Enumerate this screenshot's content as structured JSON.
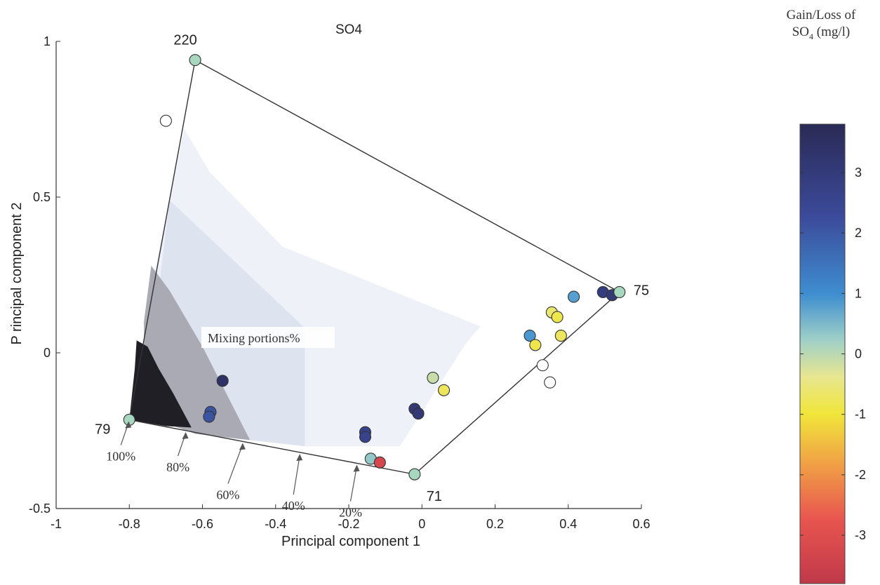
{
  "chart_data": {
    "type": "scatter",
    "title": "SO4",
    "xlabel": "Principal component 1",
    "ylabel": "P rincipal component 2",
    "xlim": [
      -1,
      0.6
    ],
    "ylim": [
      -0.5,
      1
    ],
    "x_ticks": [
      "-1",
      "-0.8",
      "-0.6",
      "-0.4",
      "-0.2",
      "0",
      "0.2",
      "0.4",
      "0.6"
    ],
    "y_ticks": [
      "-0.5",
      "0",
      "0.5",
      "1"
    ],
    "end_members": [
      {
        "label": "220",
        "x": -0.62,
        "y": 0.94
      },
      {
        "label": "75",
        "x": 0.54,
        "y": 0.195
      },
      {
        "label": "71",
        "x": -0.02,
        "y": -0.39
      },
      {
        "label": "79",
        "x": -0.8,
        "y": -0.215
      }
    ],
    "mixing_annotation": "Mixing portions%",
    "mixing_percentages": [
      "100%",
      "80%",
      "60%",
      "40%",
      "20%"
    ],
    "colorbar": {
      "title_line1": "Gain/Loss of",
      "title_prefix": "SO",
      "title_sub": "4",
      "title_suffix": "(mg/l)",
      "range": [
        -3.8,
        3.8
      ],
      "ticks": [
        "3",
        "2",
        "1",
        "0",
        "-1",
        "-2",
        "-3"
      ]
    },
    "samples": [
      {
        "x": -0.7,
        "y": 0.745,
        "v": null
      },
      {
        "x": -0.545,
        "y": -0.09,
        "v": 3.5
      },
      {
        "x": -0.578,
        "y": -0.19,
        "v": 2.3
      },
      {
        "x": -0.582,
        "y": -0.205,
        "v": 2.3
      },
      {
        "x": -0.155,
        "y": -0.255,
        "v": 2.8
      },
      {
        "x": -0.155,
        "y": -0.27,
        "v": 2.8
      },
      {
        "x": -0.02,
        "y": -0.18,
        "v": 3.2
      },
      {
        "x": -0.01,
        "y": -0.195,
        "v": 3.2
      },
      {
        "x": -0.14,
        "y": -0.34,
        "v": 0.5
      },
      {
        "x": -0.115,
        "y": -0.352,
        "v": -3.2
      },
      {
        "x": 0.03,
        "y": -0.08,
        "v": 0
      },
      {
        "x": 0.06,
        "y": -0.12,
        "v": -0.6
      },
      {
        "x": 0.295,
        "y": 0.055,
        "v": 1.1
      },
      {
        "x": 0.31,
        "y": 0.025,
        "v": -0.7
      },
      {
        "x": 0.355,
        "y": 0.13,
        "v": -0.5
      },
      {
        "x": 0.37,
        "y": 0.115,
        "v": -0.7
      },
      {
        "x": 0.38,
        "y": 0.055,
        "v": -0.6
      },
      {
        "x": 0.415,
        "y": 0.18,
        "v": 1.0
      },
      {
        "x": 0.495,
        "y": 0.195,
        "v": 3.0
      },
      {
        "x": 0.52,
        "y": 0.185,
        "v": 3.2
      },
      {
        "x": 0.33,
        "y": -0.04,
        "v": null
      },
      {
        "x": 0.35,
        "y": -0.095,
        "v": null
      }
    ]
  }
}
